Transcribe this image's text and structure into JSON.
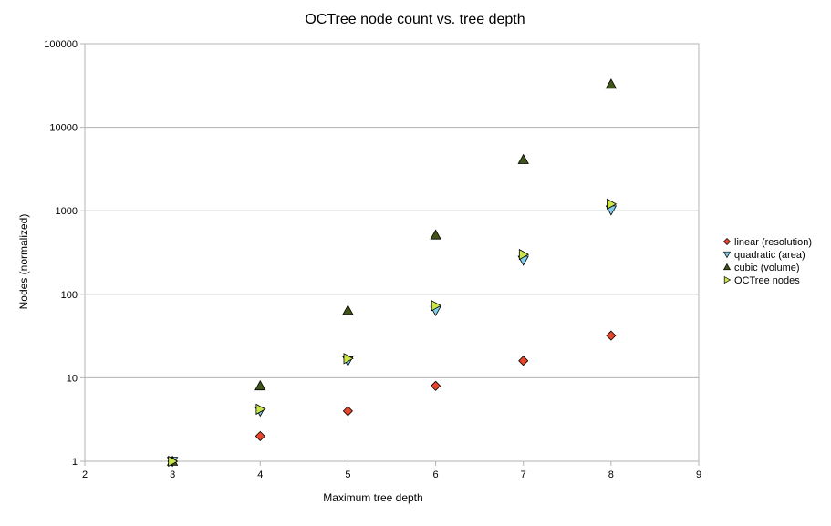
{
  "chart_data": {
    "type": "scatter",
    "title": "OCTree node count vs. tree depth",
    "xlabel": "Maximum tree depth",
    "ylabel": "Nodes (normalized)",
    "xlim": [
      2,
      9
    ],
    "xticks": [
      2,
      3,
      4,
      5,
      6,
      7,
      8,
      9
    ],
    "ylim": [
      1,
      100000
    ],
    "yscale": "log",
    "yticks": [
      1,
      10,
      100,
      1000,
      10000,
      100000
    ],
    "grid": "horizontal",
    "legend_position": "right",
    "series": [
      {
        "name": "linear (resolution)",
        "marker": "diamond",
        "color": "#e8462a",
        "x": [
          3,
          4,
          5,
          6,
          7,
          8
        ],
        "y": [
          1,
          2,
          4,
          8,
          16,
          32
        ]
      },
      {
        "name": "quadratic (area)",
        "marker": "triangle-down",
        "color": "#7fcdea",
        "x": [
          3,
          4,
          5,
          6,
          7,
          8
        ],
        "y": [
          1,
          4,
          16,
          64,
          256,
          1024
        ]
      },
      {
        "name": "cubic (volume)",
        "marker": "triangle-up",
        "color": "#3f5416",
        "x": [
          3,
          4,
          5,
          6,
          7,
          8
        ],
        "y": [
          1,
          8,
          64,
          512,
          4096,
          32768
        ]
      },
      {
        "name": "OCTree nodes",
        "marker": "triangle-right",
        "color": "#c9e54a",
        "x": [
          3,
          4,
          5,
          6,
          7,
          8
        ],
        "y": [
          1,
          4.2,
          17,
          73,
          300,
          1200
        ]
      }
    ]
  }
}
